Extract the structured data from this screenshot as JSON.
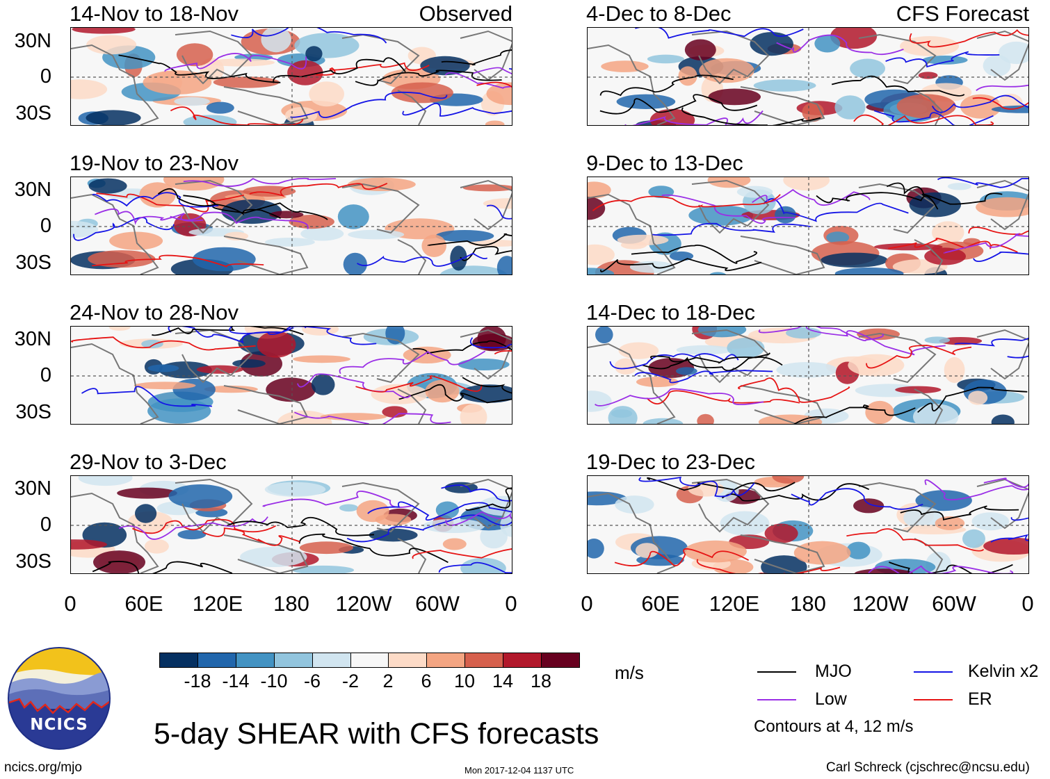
{
  "title": "5-day SHEAR with CFS forecasts",
  "observed_label": "Observed",
  "forecast_label": "CFS Forecast",
  "panels_observed": [
    {
      "period": "14-Nov to 18-Nov"
    },
    {
      "period": "19-Nov to 23-Nov"
    },
    {
      "period": "24-Nov to 28-Nov"
    },
    {
      "period": "29-Nov to 3-Dec"
    }
  ],
  "panels_forecast": [
    {
      "period": "4-Dec to 8-Dec"
    },
    {
      "period": "9-Dec to 13-Dec"
    },
    {
      "period": "14-Dec to 18-Dec"
    },
    {
      "period": "19-Dec to 23-Dec"
    }
  ],
  "lat_labels": [
    "30N",
    "0",
    "30S"
  ],
  "lon_labels": [
    "0",
    "60E",
    "120E",
    "180",
    "120W",
    "60W",
    "0"
  ],
  "colorbar": {
    "unit": "m/s",
    "ticks": [
      "-18",
      "-14",
      "-10",
      "-6",
      "-2",
      "2",
      "6",
      "10",
      "14",
      "18"
    ],
    "colors": [
      "#053061",
      "#2166ac",
      "#4393c3",
      "#92c5de",
      "#d1e5f0",
      "#f7f7f7",
      "#fddbc7",
      "#f4a582",
      "#d6604d",
      "#b2182b",
      "#67001f"
    ]
  },
  "legend": {
    "items": [
      {
        "label": "MJO",
        "color": "#000000"
      },
      {
        "label": "Kelvin x2",
        "color": "#1414e6"
      },
      {
        "label": "Low",
        "color": "#9a2ee6"
      },
      {
        "label": "ER",
        "color": "#e61414"
      }
    ],
    "note": "Contours at 4, 12 m/s"
  },
  "footer": {
    "left": "ncics.org/mjo",
    "center": "Mon 2017-12-04 1137 UTC",
    "right": "Carl Schreck (cjschrec@ncsu.edu)"
  },
  "logo": {
    "text": "NCICS"
  }
}
